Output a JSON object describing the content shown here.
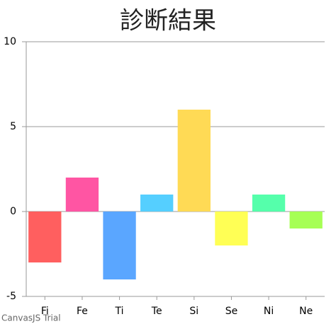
{
  "chart_data": {
    "type": "bar",
    "title": "診断結果",
    "categories": [
      "Fi",
      "Fe",
      "Ti",
      "Te",
      "Si",
      "Se",
      "Ni",
      "Ne"
    ],
    "values": [
      -3,
      2,
      -4,
      1,
      6,
      -2,
      1,
      -1
    ],
    "colors": [
      "#ff5f5f",
      "#ff55a3",
      "#5aa6ff",
      "#55cfff",
      "#ffda55",
      "#ffff55",
      "#55ffab",
      "#a6ff55"
    ],
    "ylim": [
      -5,
      10
    ],
    "yticks": [
      -5,
      0,
      5,
      10
    ],
    "grid": true,
    "credit": "CanvasJS Trial"
  }
}
